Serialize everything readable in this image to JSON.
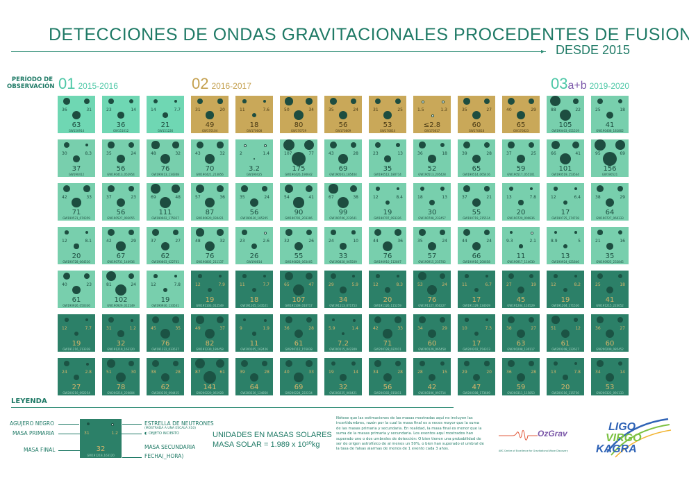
{
  "title": "DETECCIONES DE ONDAS GRAVITACIONALES PROCEDENTES DE FUSIONES",
  "subtitle": "DESDE 2015",
  "period_label_line1": "PERÍODO DE",
  "period_label_line2": "OBSERVACIÓN",
  "runs": [
    {
      "num": "01",
      "years": "2015-2016"
    },
    {
      "num": "02",
      "years": "2016-2017"
    },
    {
      "num": "03",
      "suffix": "a+b",
      "years": "2019-2020"
    }
  ],
  "colors": {
    "o1": "#6fd7b3",
    "o2": "#c9a859",
    "o3a": "#78cfad",
    "o3b": "#2c8068",
    "title": "#1f7a66"
  },
  "events": [
    {
      "m1": "36",
      "m2": "31",
      "f": "63",
      "id": "GW150914",
      "r": "o1"
    },
    {
      "m1": "23",
      "m2": "14",
      "f": "36",
      "id": "GW151012",
      "r": "o1"
    },
    {
      "m1": "14",
      "m2": "7.7",
      "f": "21",
      "id": "GW151226",
      "r": "o1"
    },
    {
      "m1": "31",
      "m2": "20",
      "f": "49",
      "id": "GW170104",
      "r": "o2"
    },
    {
      "m1": "11",
      "m2": "7.6",
      "f": "18",
      "id": "GW170608",
      "r": "o2"
    },
    {
      "m1": "50",
      "m2": "34",
      "f": "80",
      "id": "GW170729",
      "r": "o2"
    },
    {
      "m1": "35",
      "m2": "24",
      "f": "56",
      "id": "GW170809",
      "r": "o2"
    },
    {
      "m1": "31",
      "m2": "25",
      "f": "53",
      "id": "GW170814",
      "r": "o2"
    },
    {
      "m1": "1.5",
      "m2": "1.3",
      "f": "≤2.8",
      "id": "GW170817",
      "r": "o2"
    },
    {
      "m1": "35",
      "m2": "27",
      "f": "60",
      "id": "GW170818",
      "r": "o2"
    },
    {
      "m1": "40",
      "m2": "29",
      "f": "65",
      "id": "GW170823",
      "r": "o2"
    },
    {
      "m1": "88",
      "m2": "22",
      "f": "105",
      "id": "GW190403_051519",
      "r": "o3a"
    },
    {
      "m1": "25",
      "m2": "18",
      "f": "41",
      "id": "GW190408_181802",
      "r": "o3a"
    },
    {
      "m1": "30",
      "m2": "8.3",
      "f": "37",
      "id": "GW190412",
      "r": "o3a"
    },
    {
      "m1": "35",
      "m2": "24",
      "f": "56",
      "id": "GW190413_052954",
      "r": "o3a"
    },
    {
      "m1": "48",
      "m2": "32",
      "f": "76",
      "id": "GW190413_134308",
      "r": "o3a"
    },
    {
      "m1": "43",
      "m2": "32",
      "f": "70",
      "id": "GW190421_213856",
      "r": "o3a"
    },
    {
      "m1": "2",
      "m2": "1.4",
      "f": "3.2",
      "id": "GW190425",
      "r": "o3a"
    },
    {
      "m1": "107",
      "m2": "77",
      "f": "175",
      "id": "GW190426_190642",
      "r": "o3a"
    },
    {
      "m1": "43",
      "m2": "28",
      "f": "69",
      "id": "GW190503_185404",
      "r": "o3a"
    },
    {
      "m1": "23",
      "m2": "13",
      "f": "35",
      "id": "GW190512_180714",
      "r": "o3a"
    },
    {
      "m1": "36",
      "m2": "18",
      "f": "52",
      "id": "GW190513_205428",
      "r": "o3a"
    },
    {
      "m1": "39",
      "m2": "28",
      "f": "65",
      "id": "GW190514_065416",
      "r": "o3a"
    },
    {
      "m1": "37",
      "m2": "25",
      "f": "59",
      "id": "GW190517_055101",
      "r": "o3a"
    },
    {
      "m1": "66",
      "m2": "41",
      "f": "101",
      "id": "GW190519_153544",
      "r": "o3a"
    },
    {
      "m1": "95",
      "m2": "69",
      "f": "156",
      "id": "GW190521",
      "r": "o3a"
    },
    {
      "m1": "42",
      "m2": "33",
      "f": "71",
      "id": "GW190521_074359",
      "r": "o3a"
    },
    {
      "m1": "37",
      "m2": "23",
      "f": "56",
      "id": "GW190527_092055",
      "r": "o3a"
    },
    {
      "m1": "69",
      "m2": "48",
      "f": "111",
      "id": "GW190602_175927",
      "r": "o3a"
    },
    {
      "m1": "57",
      "m2": "36",
      "f": "87",
      "id": "GW190620_030421",
      "r": "o3a"
    },
    {
      "m1": "35",
      "m2": "24",
      "f": "56",
      "id": "GW190630_185205",
      "r": "o3a"
    },
    {
      "m1": "54",
      "m2": "41",
      "f": "90",
      "id": "GW190701_203306",
      "r": "o3a"
    },
    {
      "m1": "67",
      "m2": "38",
      "f": "99",
      "id": "GW190706_222641",
      "r": "o3a"
    },
    {
      "m1": "12",
      "m2": "8.4",
      "f": "19",
      "id": "GW190707_093326",
      "r": "o3a"
    },
    {
      "m1": "18",
      "m2": "13",
      "f": "30",
      "id": "GW190708_232457",
      "r": "o3a"
    },
    {
      "m1": "37",
      "m2": "21",
      "f": "55",
      "id": "GW190719_215514",
      "r": "o3a"
    },
    {
      "m1": "13",
      "m2": "7.8",
      "f": "20",
      "id": "GW190720_000836",
      "r": "o3a"
    },
    {
      "m1": "12",
      "m2": "6.4",
      "f": "17",
      "id": "GW190725_174728",
      "r": "o3a"
    },
    {
      "m1": "38",
      "m2": "29",
      "f": "64",
      "id": "GW190727_060333",
      "r": "o3a"
    },
    {
      "m1": "12",
      "m2": "8.1",
      "f": "20",
      "id": "GW190728_064510",
      "r": "o3a"
    },
    {
      "m1": "42",
      "m2": "29",
      "f": "67",
      "id": "GW190731_140936",
      "r": "o3a"
    },
    {
      "m1": "37",
      "m2": "27",
      "f": "62",
      "id": "GW190803_022701",
      "r": "o3a"
    },
    {
      "m1": "48",
      "m2": "32",
      "f": "76",
      "id": "GW190805_211137",
      "r": "o3a"
    },
    {
      "m1": "23",
      "m2": "2.6",
      "f": "26",
      "id": "GW190814",
      "r": "o3a"
    },
    {
      "m1": "32",
      "m2": "26",
      "f": "55",
      "id": "GW190828_063405",
      "r": "o3a"
    },
    {
      "m1": "24",
      "m2": "10",
      "f": "33",
      "id": "GW190828_065509",
      "r": "o3a"
    },
    {
      "m1": "44",
      "m2": "36",
      "f": "76",
      "id": "GW190910_112807",
      "r": "o3a"
    },
    {
      "m1": "35",
      "m2": "24",
      "f": "57",
      "id": "GW190915_235702",
      "r": "o3a"
    },
    {
      "m1": "44",
      "m2": "24",
      "f": "66",
      "id": "GW190916_200658",
      "r": "o3a"
    },
    {
      "m1": "9.3",
      "m2": "2.1",
      "f": "11",
      "id": "GW190917_114630",
      "r": "o3a"
    },
    {
      "m1": "8.9",
      "m2": "5",
      "f": "13",
      "id": "GW190924_021846",
      "r": "o3a"
    },
    {
      "m1": "21",
      "m2": "16",
      "f": "35",
      "id": "GW190925_232845",
      "r": "o3a"
    },
    {
      "m1": "40",
      "m2": "23",
      "f": "61",
      "id": "GW190926_050336",
      "r": "o3a"
    },
    {
      "m1": "81",
      "m2": "24",
      "f": "102",
      "id": "GW190929_012149",
      "r": "o3a"
    },
    {
      "m1": "12",
      "m2": "7.8",
      "f": "19",
      "id": "GW190930_133541",
      "r": "o3a"
    },
    {
      "m1": "12",
      "m2": "7.9",
      "f": "19",
      "id": "GW191103_012549",
      "r": "o3b"
    },
    {
      "m1": "11",
      "m2": "7.7",
      "f": "18",
      "id": "GW191105_143521",
      "r": "o3b"
    },
    {
      "m1": "65",
      "m2": "47",
      "f": "107",
      "id": "GW191109_010717",
      "r": "o3b"
    },
    {
      "m1": "29",
      "m2": "5.9",
      "f": "34",
      "id": "GW191113_071753",
      "r": "o3b"
    },
    {
      "m1": "12",
      "m2": "8.3",
      "f": "20",
      "id": "GW191126_115259",
      "r": "o3b"
    },
    {
      "m1": "53",
      "m2": "24",
      "f": "76",
      "id": "GW191127_050227",
      "r": "o3b"
    },
    {
      "m1": "11",
      "m2": "6.7",
      "f": "17",
      "id": "GW191129_134029",
      "r": "o3b"
    },
    {
      "m1": "27",
      "m2": "19",
      "f": "45",
      "id": "GW191204_110529",
      "r": "o3b"
    },
    {
      "m1": "12",
      "m2": "8.2",
      "f": "19",
      "id": "GW191204_171526",
      "r": "o3b"
    },
    {
      "m1": "25",
      "m2": "18",
      "f": "41",
      "id": "GW191215_223052",
      "r": "o3b"
    },
    {
      "m1": "12",
      "m2": "7.7",
      "f": "19",
      "id": "GW191216_213338",
      "r": "o3b"
    },
    {
      "m1": "31",
      "m2": "1.2",
      "f": "32",
      "id": "GW191219_163120",
      "r": "o3b"
    },
    {
      "m1": "45",
      "m2": "35",
      "f": "76",
      "id": "GW191222_033537",
      "r": "o3b"
    },
    {
      "m1": "49",
      "m2": "37",
      "f": "82",
      "id": "GW191230_180458",
      "r": "o3b"
    },
    {
      "m1": "9",
      "m2": "1.9",
      "f": "11",
      "id": "GW200105_162426",
      "r": "o3b"
    },
    {
      "m1": "36",
      "m2": "28",
      "f": "61",
      "id": "GW200112_155838",
      "r": "o3b"
    },
    {
      "m1": "5.9",
      "m2": "1.4",
      "f": "7.2",
      "id": "GW200115_042309",
      "r": "o3b"
    },
    {
      "m1": "42",
      "m2": "33",
      "f": "71",
      "id": "GW200128_022011",
      "r": "o3b"
    },
    {
      "m1": "34",
      "m2": "29",
      "f": "60",
      "id": "GW200129_065458",
      "r": "o3b"
    },
    {
      "m1": "10",
      "m2": "7.3",
      "f": "17",
      "id": "GW200202_154313",
      "r": "o3b"
    },
    {
      "m1": "38",
      "m2": "27",
      "f": "63",
      "id": "GW200208_130117",
      "r": "o3b"
    },
    {
      "m1": "51",
      "m2": "12",
      "f": "61",
      "id": "GW200208_222617",
      "r": "o3b"
    },
    {
      "m1": "36",
      "m2": "27",
      "f": "60",
      "id": "GW200209_085452",
      "r": "o3b"
    },
    {
      "m1": "24",
      "m2": "2.8",
      "f": "27",
      "id": "GW200210_092254",
      "r": "o3b"
    },
    {
      "m1": "51",
      "m2": "30",
      "f": "78",
      "id": "GW200216_220804",
      "r": "o3b"
    },
    {
      "m1": "38",
      "m2": "28",
      "f": "62",
      "id": "GW200219_094415",
      "r": "o3b"
    },
    {
      "m1": "87",
      "m2": "61",
      "f": "141",
      "id": "GW200220_061928",
      "r": "o3b"
    },
    {
      "m1": "39",
      "m2": "28",
      "f": "64",
      "id": "GW200220_124850",
      "r": "o3b"
    },
    {
      "m1": "40",
      "m2": "33",
      "f": "69",
      "id": "GW200224_222234",
      "r": "o3b"
    },
    {
      "m1": "19",
      "m2": "14",
      "f": "32",
      "id": "GW200225_060421",
      "r": "o3b"
    },
    {
      "m1": "34",
      "m2": "28",
      "f": "56",
      "id": "GW200302_015811",
      "r": "o3b"
    },
    {
      "m1": "28",
      "m2": "15",
      "f": "42",
      "id": "GW200306_093714",
      "r": "o3b"
    },
    {
      "m1": "29",
      "m2": "20",
      "f": "47",
      "id": "GW200308_173609",
      "r": "o3b"
    },
    {
      "m1": "36",
      "m2": "28",
      "f": "59",
      "id": "GW200311_115853",
      "r": "o3b"
    },
    {
      "m1": "13",
      "m2": "7.8",
      "f": "20",
      "id": "GW200316_215756",
      "r": "o3b"
    },
    {
      "m1": "34",
      "m2": "14",
      "f": "53",
      "id": "GW200322_091133",
      "r": "o3b"
    }
  ],
  "legend": {
    "title": "LEYENDA",
    "black_hole": "AGUJERO NEGRO",
    "primary_mass": "MASA PRIMARIA",
    "final_mass": "MASA FINAL",
    "neutron_star": "ESTRELLA DE NEUTRONES",
    "scale_note": "(MOSTRADA A UNA ESCALA X10)",
    "uncertain": "OBJETO INCIERTO",
    "secondary_mass": "MASA SECUNDARIA",
    "date_time": "FECHA(_HORA)",
    "example_m1": "31",
    "example_m2": "1.2",
    "example_final": "32",
    "example_id": "GW191219_163120"
  },
  "units": {
    "line1": "UNIDADES EN MASAS SOLARES",
    "line2": "MASA SOLAR = 1.989 x 10³⁰kg"
  },
  "note": "Nótese que las estimaciones de las masas mostradas aquí no incluyen las incertidumbres, razón por la cual la masa final es a veces mayor que la suma de las masas primaria y secundaria. En realidad, la masa final es menor que la suma de la masas primaria y secundaria. Los eventos aquí mostrados han superado uno o dos umbrales de detección: O bien tienen una probabilidad de ser de origen astrofísico de al menos un 50%, o bien han superado el umbral de la tasa de falsas alarmas de menos de 1 evento cada 3 años.",
  "logos": {
    "ozgrav": "OzGrav",
    "ozgrav_sub": "ARC Centre of Excellence for Gravitational Wave Discovery",
    "ligo": "LIGO",
    "virgo": "VIRGO",
    "kagra": "KAGRA"
  }
}
